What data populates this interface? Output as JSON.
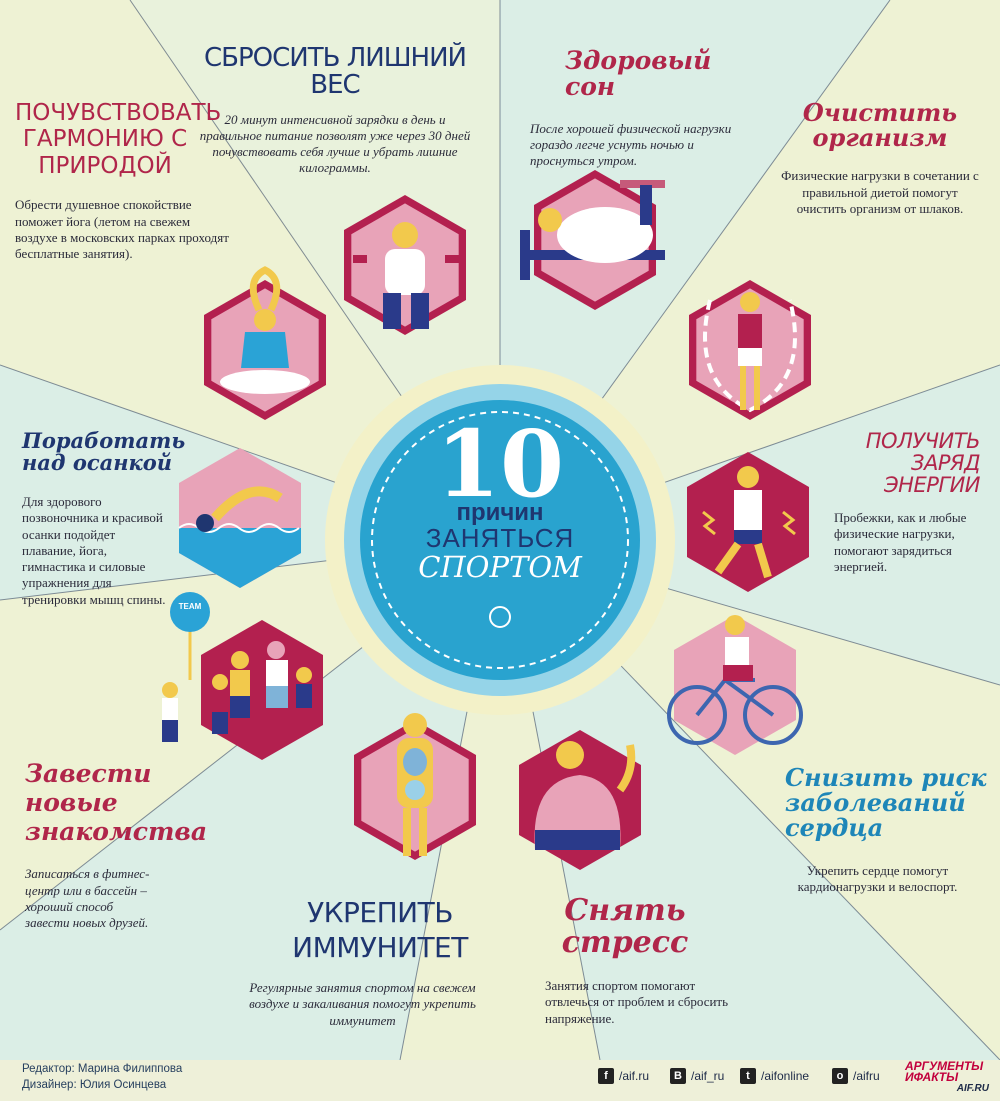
{
  "center": {
    "number": "10",
    "line1": "причин",
    "line2": "заняться",
    "line3": "спортом"
  },
  "colors": {
    "background": "#e9f2dc",
    "accent_red": "#b0264a",
    "navy": "#1f3670",
    "hex_dark": "#b3204f",
    "hex_light": "#e8a3b8",
    "center_blue": "#29a3cf",
    "center_ring": "#95d4e8",
    "water_blue": "#2aa3d6",
    "bike_blue": "#3d66b0"
  },
  "reasons": [
    {
      "title": "СБРОСИТЬ ЛИШНИЙ ВЕС",
      "text": "20 минут интенсивной зарядки в день и правильное питание позволят уже через 30 дней почувствовать себя лучше и убрать лишние килограммы.",
      "icon": "dumbbells-man-icon"
    },
    {
      "title": "Здоровый сон",
      "text": "После хорошей физической нагрузки гораздо легче уснуть ночью и проснуться утром.",
      "icon": "sleeping-man-icon"
    },
    {
      "title": "Очистить организм",
      "text": "Физические нагрузки в сочетании с правильной диетой помогут очистить организм от шлаков.",
      "icon": "jump-rope-icon"
    },
    {
      "title": "ПОЛУЧИТЬ ЗАРЯД ЭНЕРГИИ",
      "text": "Пробежки, как и любые физические нагрузки, помогают зарядиться энергией.",
      "icon": "runner-icon"
    },
    {
      "title": "Снизить риск заболеваний сердца",
      "text": "Укрепить сердце помогут кардионагрузки и велоспорт.",
      "icon": "cyclist-icon"
    },
    {
      "title": "Снять стресс",
      "text": "Занятия спортом помогают отвлечься от проблем и сбросить напряжение.",
      "icon": "relaxed-man-icon"
    },
    {
      "title": "УКРЕПИТЬ ИММУНИТЕТ",
      "text": "Регулярные занятия спортом на свежем воздухе и закаливания помогут укрепить иммунитет",
      "icon": "body-organs-icon"
    },
    {
      "title": "Завести новые знакомства",
      "text": "Записаться в фитнес-центр или в бассейн – хороший способ завести новых друзей.",
      "icon": "team-icon",
      "sign": "TEAM"
    },
    {
      "title": "Поработать над осанкой",
      "text": "Для здорового позвоночника и красивой осанки подойдет плавание, йога, гимнастика и силовые упражнения для тренировки мышц спины.",
      "icon": "swimmer-icon"
    },
    {
      "title": "ПОЧУВСТВОВАТЬ ГАРМОНИЮ С ПРИРОДОЙ",
      "text": "Обрести душевное спокойствие поможет йога (летом на свежем воздухе в московских парках проходят бесплатные занятия).",
      "icon": "yoga-icon"
    }
  ],
  "footer": {
    "editor": "Редактор: Марина Филиппова",
    "designer": "Дизайнер: Юлия Осинцева",
    "social": [
      {
        "icon": "facebook-icon",
        "glyph": "f",
        "label": "/aif.ru"
      },
      {
        "icon": "vk-icon",
        "glyph": "В",
        "label": "/aif_ru"
      },
      {
        "icon": "twitter-icon",
        "glyph": "t",
        "label": "/aifonline"
      },
      {
        "icon": "odnoklassniki-icon",
        "glyph": "о",
        "label": "/aifru"
      }
    ],
    "logo_line1": "АРГУМЕНТЫ",
    "logo_line2": "ИФАКТЫ",
    "logo_domain": "AIF.RU"
  }
}
